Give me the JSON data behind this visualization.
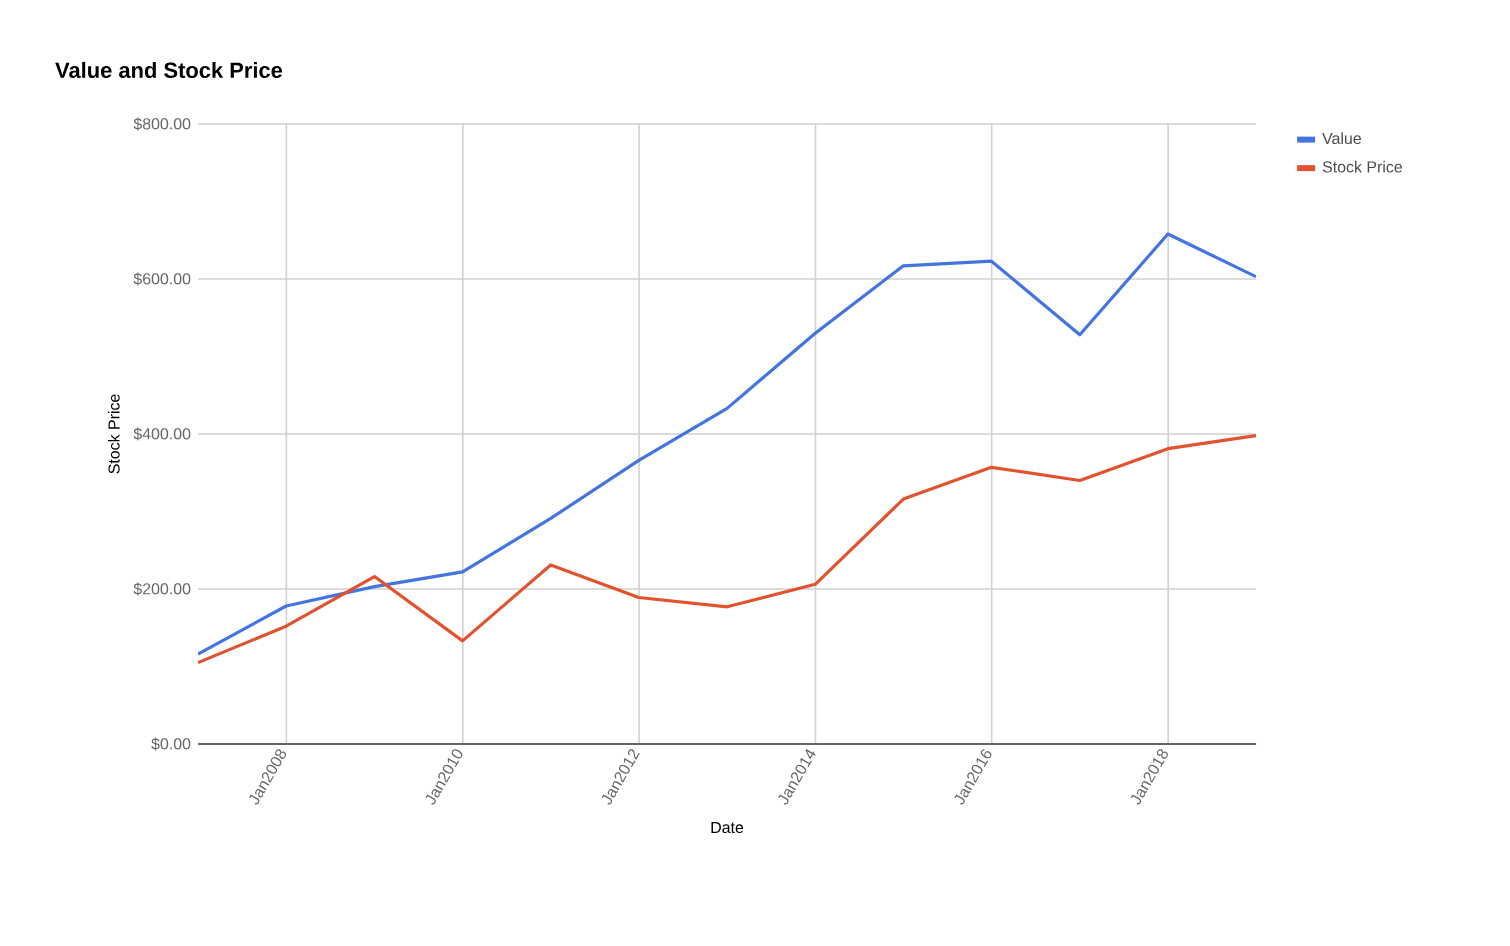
{
  "chart_data": {
    "type": "line",
    "title": "Value and Stock Price",
    "xlabel": "Date",
    "ylabel": "Stock Price",
    "x": [
      "2006-12-31",
      "2007-12-31",
      "2008-12-31",
      "2009-12-31",
      "2010-12-31",
      "2011-12-31",
      "2012-12-31",
      "2013-12-31",
      "2014-12-31",
      "2015-12-31",
      "2016-12-31",
      "2017-12-31",
      "2018-12-31"
    ],
    "series": [
      {
        "name": "Value",
        "color": "#4374e0",
        "values": [
          116,
          178,
          203,
          222,
          291,
          366,
          433,
          530,
          617,
          623,
          528,
          658,
          603
        ]
      },
      {
        "name": "Stock Price",
        "color": "#e2522e",
        "values": [
          105,
          152,
          216,
          133,
          231,
          189,
          177,
          206,
          316,
          357,
          340,
          381,
          398
        ]
      }
    ],
    "xlim": [
      "2006-12-31",
      "2018-12-31"
    ],
    "xticks": [
      {
        "value": "2008-01-01",
        "label": "Jan2008"
      },
      {
        "value": "2010-01-01",
        "label": "Jan2010"
      },
      {
        "value": "2012-01-01",
        "label": "Jan2012"
      },
      {
        "value": "2014-01-01",
        "label": "Jan2014"
      },
      {
        "value": "2016-01-01",
        "label": "Jan2016"
      },
      {
        "value": "2018-01-01",
        "label": "Jan2018"
      }
    ],
    "ylim": [
      0,
      800
    ],
    "yticks": [
      {
        "value": 0,
        "label": "$0.00"
      },
      {
        "value": 200,
        "label": "$200.00"
      },
      {
        "value": 400,
        "label": "$400.00"
      },
      {
        "value": 600,
        "label": "$600.00"
      },
      {
        "value": 800,
        "label": "$800.00"
      }
    ],
    "grid": true,
    "legend": "top right",
    "marker": "none",
    "line_style": "solid"
  }
}
